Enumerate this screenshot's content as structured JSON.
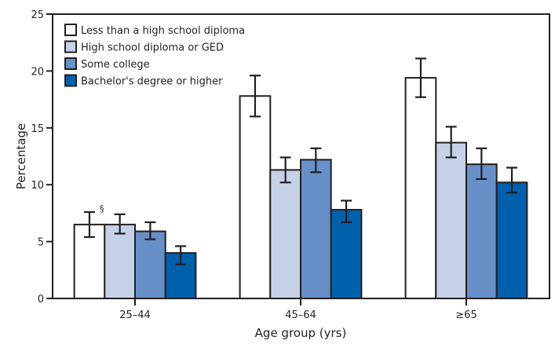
{
  "chart_data": {
    "type": "bar",
    "title": "",
    "xlabel": "Age group (yrs)",
    "ylabel": "Percentage",
    "ylim": [
      0,
      25
    ],
    "yticks": [
      0,
      5,
      10,
      15,
      20,
      25
    ],
    "ytick_labels": [
      "0",
      "5",
      "10",
      "15",
      "20",
      "25"
    ],
    "grid": false,
    "legend_position": "top-left",
    "categories": [
      "25–44",
      "45–64",
      "≥65"
    ],
    "series": [
      {
        "name": "Less than a high school diploma",
        "color": "#ffffff",
        "values": [
          6.5,
          17.8,
          19.4
        ],
        "ci_low": [
          5.4,
          16.0,
          17.7
        ],
        "ci_high": [
          7.6,
          19.6,
          21.1
        ]
      },
      {
        "name": "High school diploma or GED",
        "color": "#c5d1e8",
        "values": [
          6.5,
          11.3,
          13.7
        ],
        "ci_low": [
          5.7,
          10.2,
          12.4
        ],
        "ci_high": [
          7.4,
          12.4,
          15.1
        ]
      },
      {
        "name": "Some college",
        "color": "#678fc8",
        "values": [
          5.9,
          12.2,
          11.8
        ],
        "ci_low": [
          5.2,
          11.1,
          10.5
        ],
        "ci_high": [
          6.7,
          13.2,
          13.2
        ]
      },
      {
        "name": "Bachelor's degree or higher",
        "color": "#0060ac",
        "values": [
          4.0,
          7.8,
          10.2
        ],
        "ci_low": [
          3.0,
          6.7,
          9.3
        ],
        "ci_high": [
          4.6,
          8.6,
          11.5
        ]
      }
    ],
    "annotations": [
      {
        "text": "§",
        "category": "25–44",
        "series": "Less than a high school diploma"
      }
    ]
  }
}
